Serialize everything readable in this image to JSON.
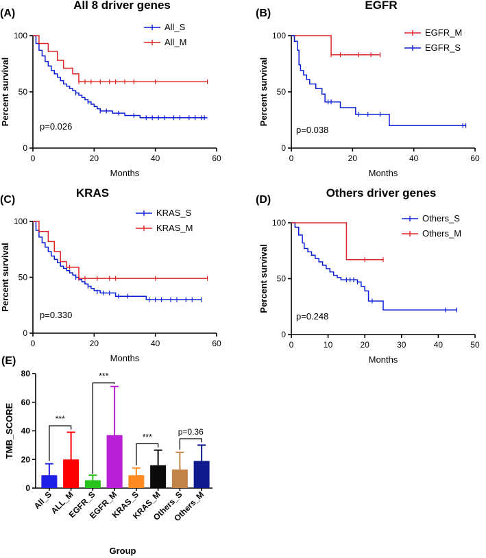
{
  "colors": {
    "blue": "#0a1ed6",
    "red": "#e02424"
  },
  "chart_data": [
    {
      "type": "line",
      "panel_label": "(A)",
      "title": "All 8 driver genes",
      "xlabel": "Months",
      "ylabel": "Percent survival",
      "xlim": [
        0,
        60
      ],
      "ylim": [
        0,
        100
      ],
      "xticks": [
        "0",
        "20",
        "40",
        "60"
      ],
      "yticks": [
        "0",
        "50",
        "100"
      ],
      "p_value": "p=0.026",
      "series": [
        {
          "name": "All_S",
          "color": "#0a1ed6",
          "steps": [
            [
              0,
              100
            ],
            [
              1,
              93
            ],
            [
              2,
              87
            ],
            [
              3,
              82
            ],
            [
              4,
              77
            ],
            [
              5,
              73
            ],
            [
              6,
              69
            ],
            [
              7,
              66
            ],
            [
              8,
              63
            ],
            [
              9,
              60
            ],
            [
              10,
              57
            ],
            [
              11,
              55
            ],
            [
              12,
              53
            ],
            [
              13,
              51
            ],
            [
              14,
              49
            ],
            [
              15,
              47
            ],
            [
              16,
              45
            ],
            [
              17,
              43
            ],
            [
              18,
              41
            ],
            [
              19,
              39
            ],
            [
              20,
              37
            ],
            [
              21,
              35
            ],
            [
              22,
              33
            ],
            [
              26,
              31
            ],
            [
              30,
              29
            ],
            [
              35,
              27
            ],
            [
              57,
              27
            ]
          ],
          "censors": [
            [
              14,
              49
            ],
            [
              18,
              41
            ],
            [
              22,
              33
            ],
            [
              24,
              33
            ],
            [
              28,
              31
            ],
            [
              33,
              29
            ],
            [
              37,
              27
            ],
            [
              39,
              27
            ],
            [
              41,
              27
            ],
            [
              43,
              27
            ],
            [
              46,
              27
            ],
            [
              48,
              27
            ],
            [
              51,
              27
            ],
            [
              53,
              27
            ],
            [
              55,
              27
            ],
            [
              56,
              27
            ]
          ]
        },
        {
          "name": "All_M",
          "color": "#e02424",
          "steps": [
            [
              0,
              100
            ],
            [
              2,
              93
            ],
            [
              5,
              86
            ],
            [
              8,
              78
            ],
            [
              10,
              71
            ],
            [
              13,
              66
            ],
            [
              15,
              59
            ],
            [
              57,
              59
            ]
          ],
          "censors": [
            [
              15,
              59
            ],
            [
              17,
              59
            ],
            [
              19,
              59
            ],
            [
              22,
              59
            ],
            [
              25,
              59
            ],
            [
              27,
              59
            ],
            [
              30,
              59
            ],
            [
              33,
              59
            ],
            [
              40,
              59
            ],
            [
              57,
              59
            ]
          ]
        }
      ]
    },
    {
      "type": "line",
      "panel_label": "(B)",
      "title": "EGFR",
      "xlabel": "Months",
      "ylabel": "Percent survival",
      "xlim": [
        0,
        60
      ],
      "ylim": [
        0,
        100
      ],
      "xticks": [
        "0",
        "20",
        "40",
        "60"
      ],
      "yticks": [
        "0",
        "50",
        "100"
      ],
      "p_value": "p=0.038",
      "series": [
        {
          "name": "EGFR_M",
          "color": "#e02424",
          "steps": [
            [
              0,
              100
            ],
            [
              13,
              83
            ],
            [
              29,
              83
            ]
          ],
          "censors": [
            [
              13,
              83
            ],
            [
              16,
              83
            ],
            [
              22,
              83
            ],
            [
              26,
              83
            ],
            [
              29,
              83
            ]
          ]
        },
        {
          "name": "EGFR_S",
          "color": "#0a1ed6",
          "steps": [
            [
              0,
              100
            ],
            [
              1,
              95
            ],
            [
              2,
              87
            ],
            [
              2.5,
              74
            ],
            [
              3,
              69
            ],
            [
              4,
              65
            ],
            [
              5,
              61
            ],
            [
              6,
              57
            ],
            [
              8,
              53
            ],
            [
              10,
              48
            ],
            [
              11,
              41
            ],
            [
              16,
              36
            ],
            [
              21,
              30
            ],
            [
              32,
              20
            ],
            [
              57,
              20
            ]
          ],
          "censors": [
            [
              12,
              41
            ],
            [
              13,
              41
            ],
            [
              22,
              30
            ],
            [
              25,
              30
            ],
            [
              29,
              30
            ],
            [
              56,
              20
            ],
            [
              57,
              20
            ]
          ]
        }
      ]
    },
    {
      "type": "line",
      "panel_label": "(C)",
      "title": "KRAS",
      "xlabel": "Months",
      "ylabel": "Percent survival",
      "xlim": [
        0,
        60
      ],
      "ylim": [
        0,
        100
      ],
      "xticks": [
        "0",
        "20",
        "40",
        "60"
      ],
      "yticks": [
        "0",
        "50",
        "100"
      ],
      "p_value": "p=0.330",
      "series": [
        {
          "name": "KRAS_S",
          "color": "#0a1ed6",
          "steps": [
            [
              0,
              100
            ],
            [
              1,
              92
            ],
            [
              2,
              86
            ],
            [
              3,
              81
            ],
            [
              4,
              77
            ],
            [
              5,
              73
            ],
            [
              6,
              69
            ],
            [
              7,
              66
            ],
            [
              8,
              63
            ],
            [
              9,
              60
            ],
            [
              10,
              58
            ],
            [
              11,
              56
            ],
            [
              12,
              54
            ],
            [
              13,
              52
            ],
            [
              14,
              50
            ],
            [
              15,
              48
            ],
            [
              16,
              46
            ],
            [
              17,
              44
            ],
            [
              18,
              42
            ],
            [
              19,
              40
            ],
            [
              20,
              38
            ],
            [
              22,
              36
            ],
            [
              27,
              33
            ],
            [
              37,
              30
            ],
            [
              55,
              30
            ]
          ],
          "censors": [
            [
              14,
              50
            ],
            [
              18,
              42
            ],
            [
              21,
              37
            ],
            [
              23,
              36
            ],
            [
              25,
              36
            ],
            [
              28,
              33
            ],
            [
              31,
              33
            ],
            [
              38,
              30
            ],
            [
              40,
              30
            ],
            [
              42,
              30
            ],
            [
              45,
              30
            ],
            [
              47,
              30
            ],
            [
              50,
              30
            ],
            [
              52,
              30
            ],
            [
              55,
              30
            ]
          ]
        },
        {
          "name": "KRAS_M",
          "color": "#e02424",
          "steps": [
            [
              0,
              100
            ],
            [
              2,
              91
            ],
            [
              5,
              82
            ],
            [
              7,
              73
            ],
            [
              9,
              64
            ],
            [
              11,
              59
            ],
            [
              15,
              49
            ],
            [
              57,
              49
            ]
          ],
          "censors": [
            [
              12,
              59
            ],
            [
              15,
              49
            ],
            [
              17,
              49
            ],
            [
              21,
              49
            ],
            [
              25,
              49
            ],
            [
              27,
              49
            ],
            [
              40,
              49
            ],
            [
              57,
              49
            ]
          ]
        }
      ]
    },
    {
      "type": "line",
      "panel_label": "(D)",
      "title": "Others driver genes",
      "xlabel": "Months",
      "ylabel": "Percent survival",
      "xlim": [
        0,
        50
      ],
      "ylim": [
        0,
        100
      ],
      "xticks": [
        "0",
        "10",
        "20",
        "30",
        "40",
        "50"
      ],
      "yticks": [
        "0",
        "50",
        "100"
      ],
      "p_value": "p=0.248",
      "series": [
        {
          "name": "Others_S",
          "color": "#0a1ed6",
          "steps": [
            [
              0,
              100
            ],
            [
              1,
              96
            ],
            [
              2,
              89
            ],
            [
              3,
              82
            ],
            [
              3.5,
              77
            ],
            [
              4.5,
              74
            ],
            [
              5.5,
              71
            ],
            [
              6.5,
              68
            ],
            [
              7.5,
              65
            ],
            [
              8.5,
              62
            ],
            [
              9.5,
              59
            ],
            [
              10.5,
              56
            ],
            [
              11.5,
              53
            ],
            [
              12.5,
              51
            ],
            [
              13.5,
              49
            ],
            [
              18,
              47
            ],
            [
              19,
              43
            ],
            [
              20,
              39
            ],
            [
              21,
              30
            ],
            [
              25,
              22
            ],
            [
              45,
              22
            ]
          ],
          "censors": [
            [
              15,
              49
            ],
            [
              16,
              49
            ],
            [
              17,
              49
            ],
            [
              18,
              47
            ],
            [
              22,
              30
            ],
            [
              42,
              22
            ],
            [
              45,
              22
            ]
          ]
        },
        {
          "name": "Others_M",
          "color": "#e02424",
          "steps": [
            [
              0,
              100
            ],
            [
              15,
              67
            ],
            [
              25,
              67
            ]
          ],
          "censors": [
            [
              20,
              67
            ],
            [
              25,
              67
            ]
          ]
        }
      ]
    },
    {
      "type": "bar",
      "panel_label": "(E)",
      "xlabel": "Group",
      "ylabel": "TMB_SCORE",
      "ylim": [
        0,
        80
      ],
      "yticks": [
        "0",
        "20",
        "40",
        "60",
        "80"
      ],
      "categories": [
        "All_S",
        "ALL_M",
        "EGFR_S",
        "EGFR_M",
        "KRAS_S",
        "KRAS_M",
        "Others_S",
        "Others_M"
      ],
      "values": [
        9,
        20,
        5.5,
        37,
        9,
        16,
        13,
        19
      ],
      "errors": [
        8,
        19,
        3.5,
        34,
        5,
        10.5,
        12,
        11
      ],
      "bar_colors": [
        "#1f1fe6",
        "#ff0000",
        "#27c21b",
        "#b81fd6",
        "#ff8a1f",
        "#0a0a0a",
        "#c28348",
        "#0e1a8e"
      ],
      "comparisons": [
        {
          "groups": [
            0,
            1
          ],
          "label": "***"
        },
        {
          "groups": [
            2,
            3
          ],
          "label": "***"
        },
        {
          "groups": [
            4,
            5
          ],
          "label": "***"
        },
        {
          "groups": [
            6,
            7
          ],
          "label": "p=0.36"
        }
      ]
    }
  ]
}
